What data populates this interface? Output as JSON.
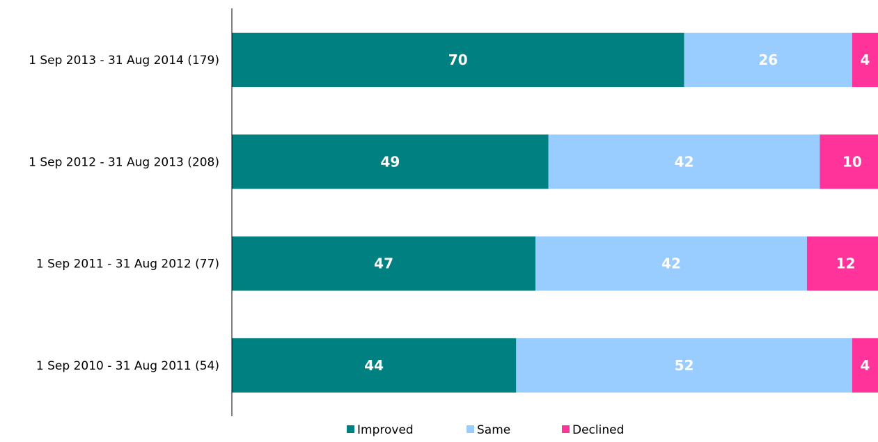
{
  "chart_data": {
    "type": "bar",
    "orientation": "horizontal",
    "stacked": true,
    "categories": [
      "1 Sep 2013 - 31 Aug 2014 (179)",
      "1 Sep 2012 - 31 Aug 2013 (208)",
      "1 Sep 2011 - 31 Aug 2012 (77)",
      "1 Sep 2010 - 31 Aug 2011 (54)"
    ],
    "series": [
      {
        "name": "Improved",
        "color": "#008080",
        "values": [
          70,
          49,
          47,
          44
        ]
      },
      {
        "name": "Same",
        "color": "#99ccff",
        "values": [
          26,
          42,
          42,
          52
        ]
      },
      {
        "name": "Declined",
        "color": "#ff3399",
        "values": [
          4,
          10,
          12,
          4
        ]
      }
    ],
    "xlim": [
      0,
      100
    ],
    "grid": false,
    "legend": "bottom"
  }
}
